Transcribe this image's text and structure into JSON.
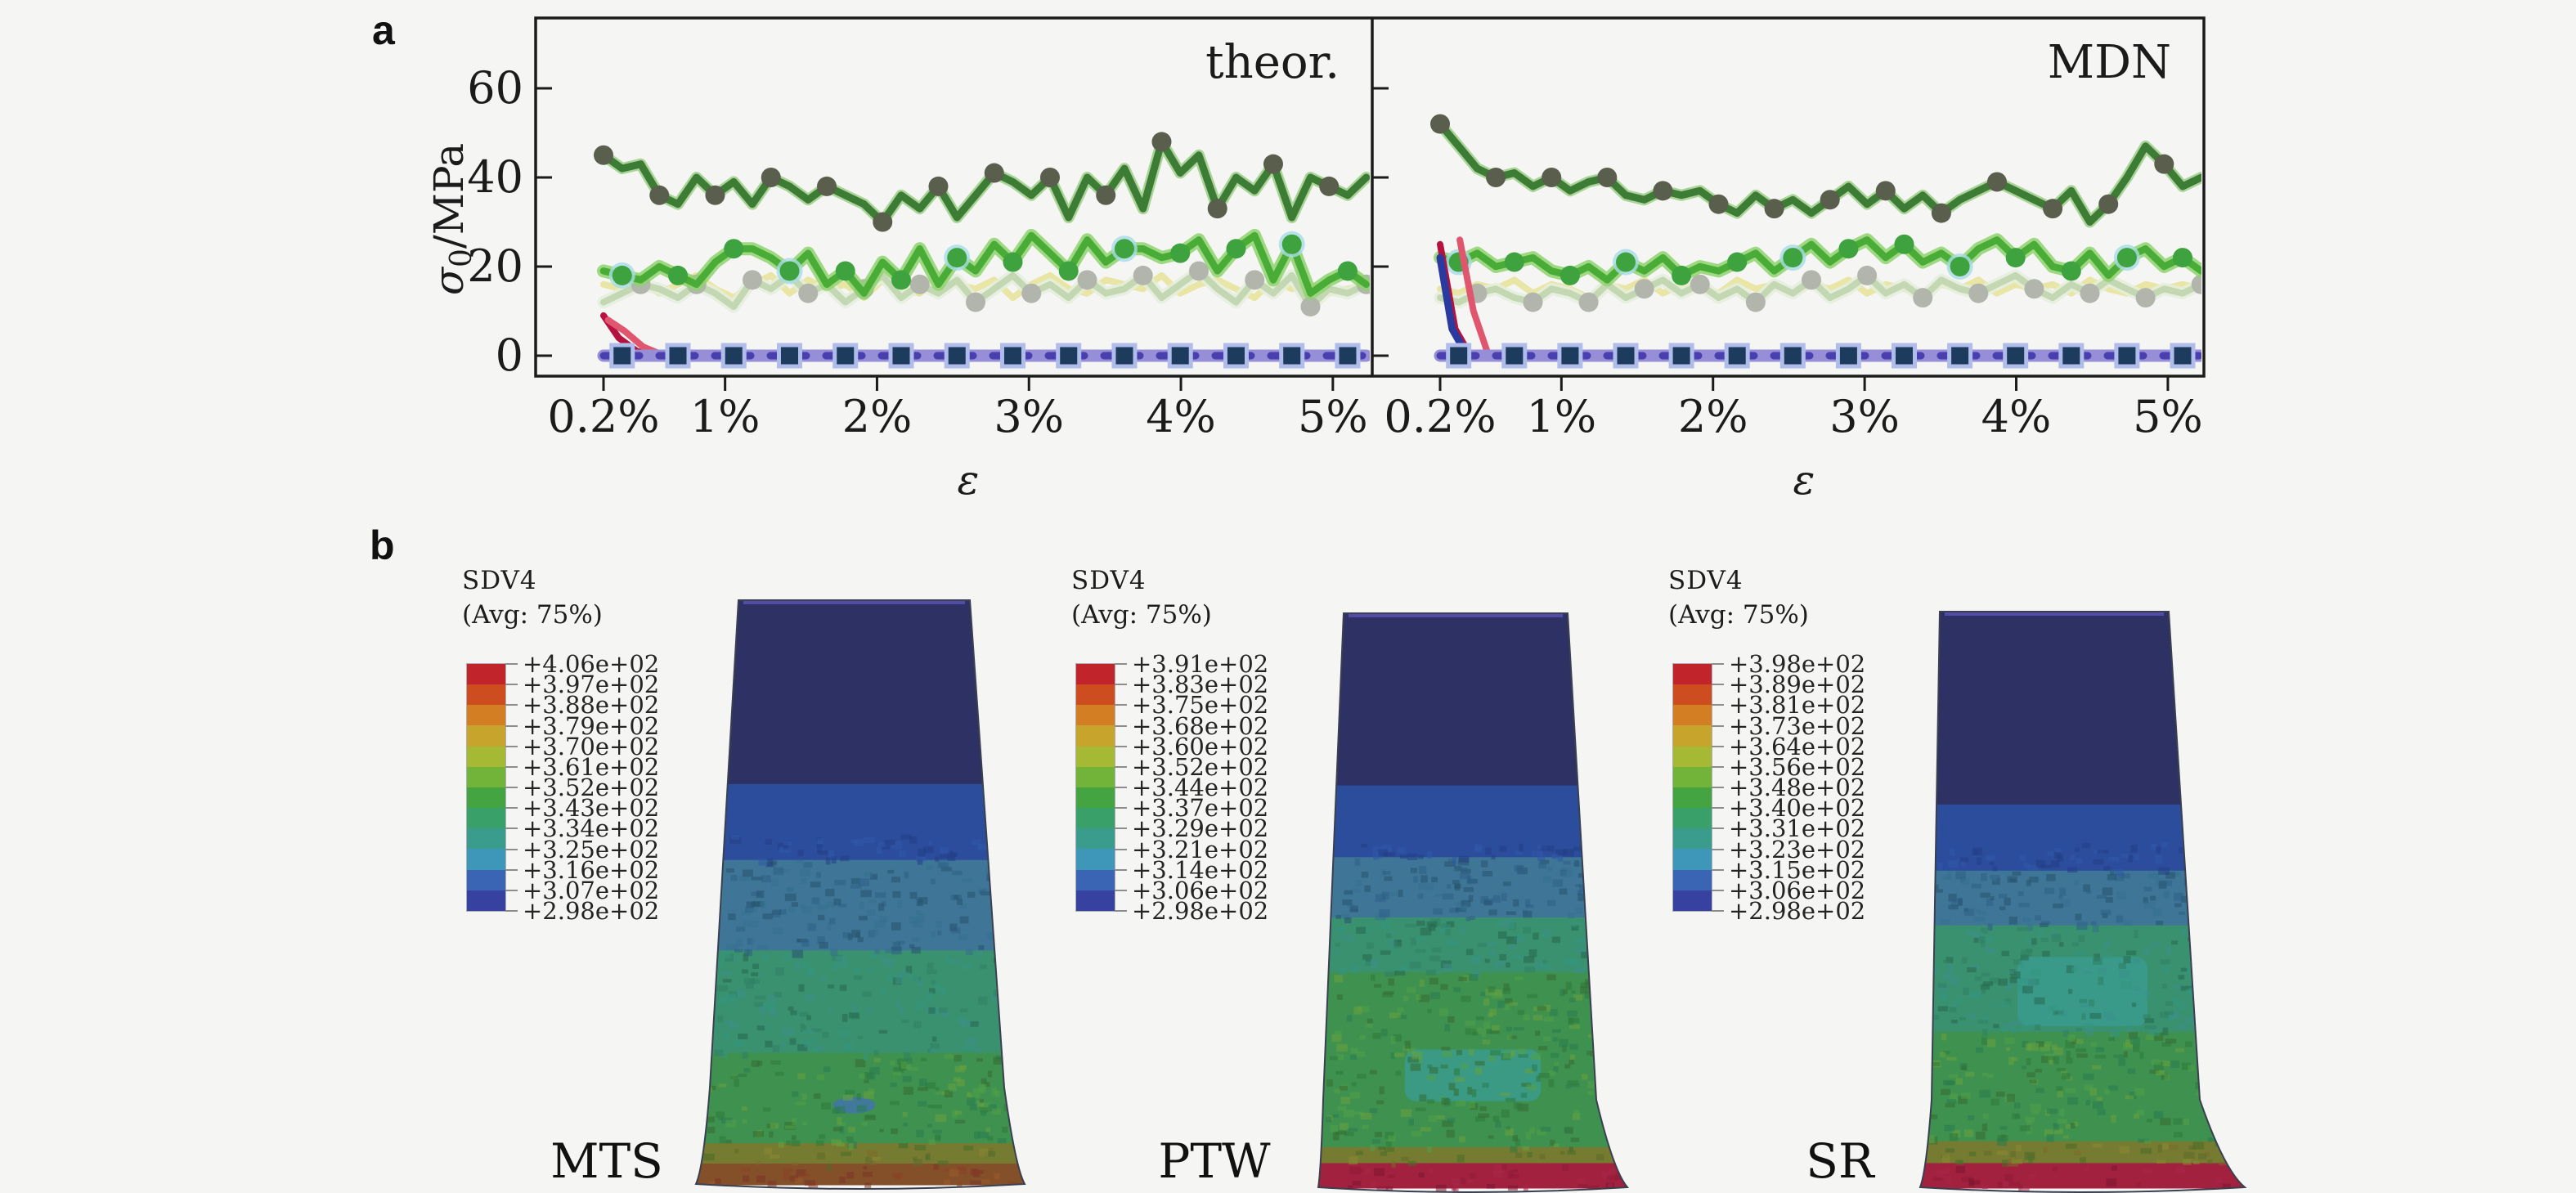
{
  "colors": {
    "background": "#f5f5f4",
    "axis": "#1b1b1b",
    "series": {
      "dark_green": "#3c7c35",
      "dark_green_halo": "#6db84f",
      "dark_green_marker": "#5a5e4c",
      "mid_green": "#49ac36",
      "mid_green_halo": "#8fd26e",
      "mid_green_marker": "#3ea23e",
      "cyan_ring": "#a8dce6",
      "pale_green": "#c3d8b2",
      "pale_green_halo": "#e4efdc",
      "pale_green_marker": "#b2b5ac",
      "yellow": "#e9e5a4",
      "baseline": "#4a3fae",
      "baseline_edge": "#968ed6",
      "baseline_marker_fill": "#1d3b5c",
      "baseline_marker_edge": "#b0bce9",
      "red_dark": "#b5123f",
      "red_light": "#e1566f",
      "navy_transient": "#2b3a9e"
    },
    "contour_bands": [
      "#c1242b",
      "#cd4d20",
      "#d37e22",
      "#c7a42b",
      "#a6b934",
      "#72b43a",
      "#44a441",
      "#3aa06a",
      "#3a9c8d",
      "#3e97b9",
      "#3a64b4",
      "#37419f"
    ],
    "specimen": {
      "navy": "#2d3164",
      "blue": "#2c4d9b",
      "steel": "#3f7697",
      "seagreen": "#3a9170",
      "green": "#3f9150",
      "olive": "#757b31",
      "brown": "#84502a",
      "crimson": "#a2213f",
      "edge": "#3a4050",
      "top_rim": "#5a55b8"
    }
  },
  "panel_a": {
    "label": "a",
    "ylabel": {
      "sigma": "σ",
      "sub": "0",
      "unit": "/MPa"
    },
    "xlabel": "ε",
    "yticks": [
      "0",
      "20",
      "40",
      "60"
    ],
    "xticks": [
      "0.2%",
      "1%",
      "2%",
      "3%",
      "4%",
      "5%"
    ],
    "plots": [
      {
        "title": "theor."
      },
      {
        "title": "MDN"
      }
    ]
  },
  "chart_data": [
    {
      "type": "line",
      "title": "theor.",
      "xlabel": "ε",
      "ylabel": "σ0/MPa",
      "xlim": [
        0.2,
        5.22
      ],
      "ylim": [
        -5,
        75
      ],
      "xticks": [
        0.2,
        1,
        2,
        3,
        4,
        5
      ],
      "yticks": [
        0,
        20,
        40,
        60
      ],
      "x_start": 0.2,
      "x_end": 5.22,
      "series": [
        {
          "name": "yellow",
          "values": [
            16,
            15,
            17,
            14,
            16,
            18,
            15,
            13,
            16,
            18,
            14,
            17,
            15,
            16,
            13,
            17,
            15,
            14,
            18,
            16,
            15,
            17,
            13,
            16,
            18,
            15,
            14,
            17,
            16,
            15,
            18,
            14,
            16,
            17,
            15,
            13,
            17,
            15,
            16,
            14,
            15,
            16
          ]
        },
        {
          "name": "pale-green",
          "values": [
            12,
            14,
            16,
            15,
            13,
            16,
            14,
            11,
            17,
            15,
            18,
            14,
            16,
            12,
            15,
            18,
            13,
            16,
            14,
            17,
            12,
            15,
            18,
            14,
            16,
            13,
            17,
            14,
            15,
            18,
            13,
            16,
            19,
            15,
            12,
            17,
            14,
            18,
            11,
            15,
            14,
            16
          ]
        },
        {
          "name": "mid-green",
          "values": [
            19,
            18,
            17,
            20,
            18,
            16,
            21,
            24,
            24,
            22,
            19,
            23,
            16,
            19,
            14,
            21,
            17,
            24,
            16,
            22,
            19,
            25,
            21,
            27,
            23,
            19,
            26,
            21,
            24,
            24,
            22,
            23,
            26,
            19,
            24,
            27,
            17,
            25,
            14,
            17,
            19,
            16
          ]
        },
        {
          "name": "dark-green",
          "values": [
            45,
            42,
            43,
            36,
            34,
            40,
            36,
            39,
            34,
            40,
            38,
            35,
            38,
            36,
            34,
            30,
            36,
            33,
            38,
            31,
            36,
            41,
            39,
            36,
            40,
            31,
            40,
            36,
            42,
            33,
            48,
            41,
            45,
            33,
            40,
            37,
            43,
            31,
            40,
            38,
            36,
            40
          ]
        },
        {
          "name": "red-transient-1",
          "x": [
            0.2,
            0.3,
            0.42,
            0.55
          ],
          "values": [
            9,
            4,
            1,
            0
          ]
        },
        {
          "name": "red-transient-2",
          "x": [
            0.23,
            0.34,
            0.46,
            0.6
          ],
          "values": [
            8,
            5.5,
            2,
            0
          ]
        },
        {
          "name": "baseline",
          "values": [
            0,
            0,
            0,
            0,
            0,
            0,
            0,
            0,
            0,
            0,
            0,
            0,
            0,
            0,
            0,
            0,
            0,
            0,
            0,
            0,
            0,
            0,
            0,
            0,
            0,
            0,
            0,
            0,
            0,
            0,
            0,
            0,
            0,
            0,
            0,
            0,
            0,
            0,
            0,
            0,
            0,
            0
          ]
        }
      ]
    },
    {
      "type": "line",
      "title": "MDN",
      "xlabel": "ε",
      "ylabel": "σ0/MPa",
      "xlim": [
        0.2,
        5.22
      ],
      "ylim": [
        -5,
        75
      ],
      "xticks": [
        0.2,
        1,
        2,
        3,
        4,
        5
      ],
      "yticks": [
        0,
        20,
        40,
        60
      ],
      "x_start": 0.2,
      "x_end": 5.22,
      "series": [
        {
          "name": "yellow",
          "values": [
            15,
            14,
            16,
            15,
            17,
            14,
            16,
            15,
            13,
            16,
            15,
            17,
            14,
            16,
            15,
            14,
            17,
            15,
            16,
            14,
            16,
            15,
            17,
            14,
            16,
            15,
            14,
            16,
            15,
            17,
            14,
            16,
            15,
            16,
            14,
            17,
            15,
            14,
            16,
            15,
            16,
            15
          ]
        },
        {
          "name": "pale-green",
          "values": [
            13,
            12,
            14,
            15,
            13,
            12,
            15,
            14,
            12,
            16,
            13,
            15,
            17,
            14,
            16,
            13,
            15,
            12,
            16,
            14,
            17,
            13,
            15,
            18,
            14,
            16,
            13,
            17,
            15,
            14,
            16,
            18,
            15,
            13,
            16,
            14,
            17,
            15,
            13,
            15,
            14,
            16
          ]
        },
        {
          "name": "mid-green",
          "values": [
            22,
            21,
            23,
            20,
            21,
            22,
            19,
            18,
            20,
            17,
            21,
            19,
            22,
            18,
            20,
            19,
            21,
            23,
            19,
            22,
            25,
            21,
            24,
            26,
            22,
            25,
            21,
            23,
            20,
            24,
            26,
            22,
            25,
            20,
            19,
            23,
            18,
            22,
            24,
            20,
            22,
            19
          ]
        },
        {
          "name": "dark-green",
          "values": [
            52,
            47,
            42,
            40,
            41,
            38,
            40,
            37,
            39,
            40,
            36,
            35,
            37,
            36,
            37,
            34,
            32,
            36,
            33,
            35,
            32,
            35,
            38,
            34,
            37,
            33,
            36,
            32,
            35,
            37,
            39,
            37,
            35,
            33,
            37,
            30,
            34,
            40,
            47,
            43,
            38,
            40
          ]
        },
        {
          "name": "navy-transient",
          "x": [
            0.2,
            0.28,
            0.38
          ],
          "values": [
            22,
            6,
            0
          ]
        },
        {
          "name": "red-transient-1",
          "x": [
            0.2,
            0.3,
            0.4
          ],
          "values": [
            25,
            6,
            0
          ]
        },
        {
          "name": "red-transient-2",
          "x": [
            0.33,
            0.42,
            0.52
          ],
          "values": [
            26,
            10,
            0
          ]
        },
        {
          "name": "baseline",
          "values": [
            0,
            0,
            0,
            0,
            0,
            0,
            0,
            0,
            0,
            0,
            0,
            0,
            0,
            0,
            0,
            0,
            0,
            0,
            0,
            0,
            0,
            0,
            0,
            0,
            0,
            0,
            0,
            0,
            0,
            0,
            0,
            0,
            0,
            0,
            0,
            0,
            0,
            0,
            0,
            0,
            0,
            0
          ]
        }
      ]
    }
  ],
  "panel_b": {
    "label": "b",
    "specimens": [
      {
        "name": "MTS",
        "legend_title": "SDV4",
        "legend_subtitle": "(Avg: 75%)",
        "legend_ticks": [
          "+4.06e+02",
          "+3.97e+02",
          "+3.88e+02",
          "+3.79e+02",
          "+3.70e+02",
          "+3.61e+02",
          "+3.52e+02",
          "+3.43e+02",
          "+3.34e+02",
          "+3.25e+02",
          "+3.16e+02",
          "+3.07e+02",
          "+2.98e+02"
        ]
      },
      {
        "name": "PTW",
        "legend_title": "SDV4",
        "legend_subtitle": "(Avg: 75%)",
        "legend_ticks": [
          "+3.91e+02",
          "+3.83e+02",
          "+3.75e+02",
          "+3.68e+02",
          "+3.60e+02",
          "+3.52e+02",
          "+3.44e+02",
          "+3.37e+02",
          "+3.29e+02",
          "+3.21e+02",
          "+3.14e+02",
          "+3.06e+02",
          "+2.98e+02"
        ]
      },
      {
        "name": "SR",
        "legend_title": "SDV4",
        "legend_subtitle": "(Avg: 75%)",
        "legend_ticks": [
          "+3.98e+02",
          "+3.89e+02",
          "+3.81e+02",
          "+3.73e+02",
          "+3.64e+02",
          "+3.56e+02",
          "+3.48e+02",
          "+3.40e+02",
          "+3.31e+02",
          "+3.23e+02",
          "+3.15e+02",
          "+3.06e+02",
          "+2.98e+02"
        ]
      }
    ]
  }
}
